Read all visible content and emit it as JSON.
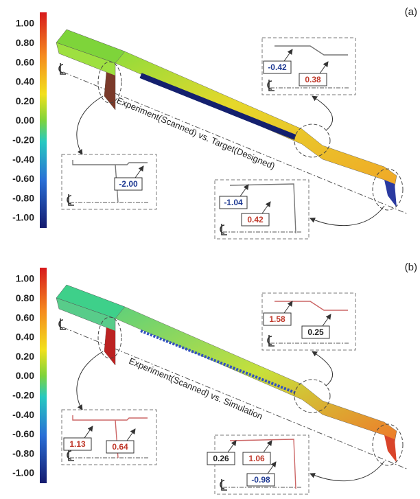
{
  "panels": [
    {
      "label": "(a)",
      "caption": "Experiment(Scanned) vs. Target(Designed)",
      "colorbar_ticks": [
        "1.00",
        "0.80",
        "0.60",
        "0.40",
        "0.20",
        "0.00",
        "-0.20",
        "-0.40",
        "-0.60",
        "-0.80",
        "-1.00"
      ],
      "insets": [
        {
          "callouts": [
            {
              "text": "-0.42",
              "color": "#1f3a93"
            },
            {
              "text": "0.38",
              "color": "#c0392b"
            }
          ]
        },
        {
          "callouts": [
            {
              "text": "-2.00",
              "color": "#1f3a93"
            }
          ]
        },
        {
          "callouts": [
            {
              "text": "-1.04",
              "color": "#1f3a93"
            },
            {
              "text": "0.42",
              "color": "#c0392b"
            }
          ]
        }
      ]
    },
    {
      "label": "(b)",
      "caption": "Experiment(Scanned) vs. Simulation",
      "colorbar_ticks": [
        "1.00",
        "0.80",
        "0.60",
        "0.40",
        "0.20",
        "0.00",
        "-0.20",
        "-0.40",
        "-0.60",
        "-0.80",
        "-1.00"
      ],
      "insets": [
        {
          "callouts": [
            {
              "text": "1.58",
              "color": "#c0392b"
            },
            {
              "text": "0.25",
              "color": "#222222"
            }
          ]
        },
        {
          "callouts": [
            {
              "text": "1.13",
              "color": "#c0392b"
            },
            {
              "text": "0.64",
              "color": "#c0392b"
            }
          ]
        },
        {
          "callouts": [
            {
              "text": "0.26",
              "color": "#222222"
            },
            {
              "text": "1.06",
              "color": "#c0392b"
            },
            {
              "text": "-0.98",
              "color": "#1f3a93"
            }
          ]
        }
      ]
    }
  ]
}
